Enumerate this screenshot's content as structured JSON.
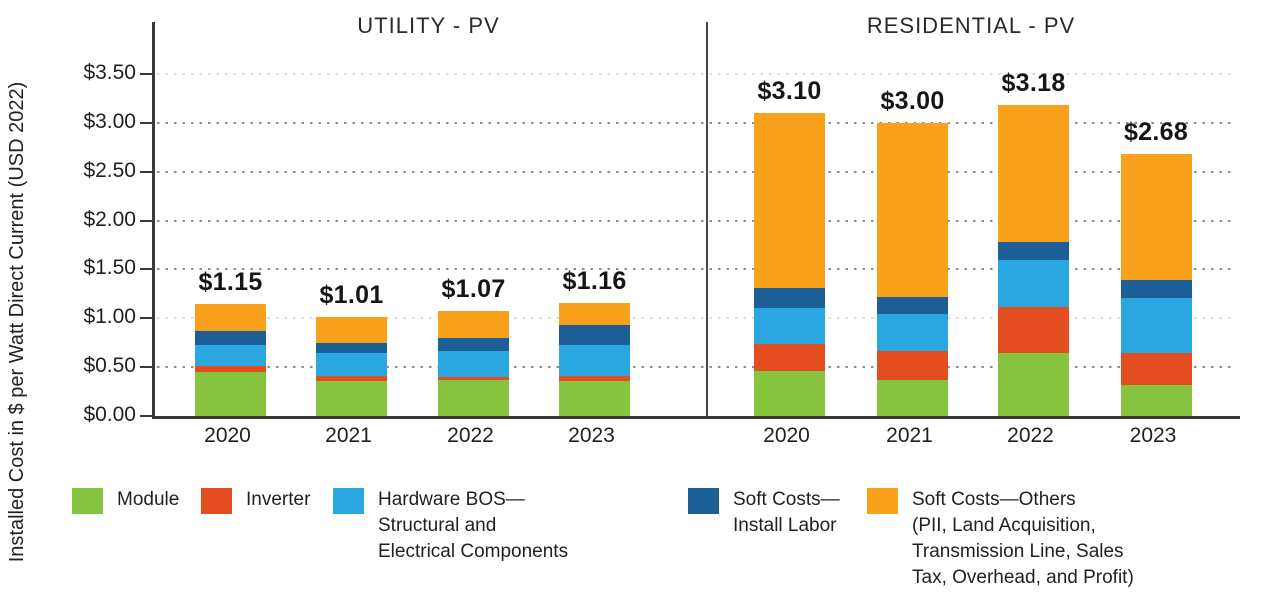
{
  "chart_data": {
    "type": "bar",
    "stacked": true,
    "ylabel": "Installed Cost in $ per Watt Direct Current (USD 2022)",
    "ylim": [
      0,
      4.0
    ],
    "grid": "dotted horizontal",
    "legend_position": "bottom",
    "y_ticks": [
      {
        "value": 0.0,
        "label": "$0.00"
      },
      {
        "value": 0.5,
        "label": "$0.50"
      },
      {
        "value": 1.0,
        "label": "$1.00"
      },
      {
        "value": 1.5,
        "label": "$1.50"
      },
      {
        "value": 2.0,
        "label": "$2.00"
      },
      {
        "value": 2.5,
        "label": "$2.50"
      },
      {
        "value": 3.0,
        "label": "$3.00"
      },
      {
        "value": 3.5,
        "label": "$3.50"
      }
    ],
    "gridlines": [
      0.5,
      1.5,
      2.0,
      2.5,
      3.0
    ],
    "gridlines_faint": [
      1.0,
      3.5
    ],
    "colors": {
      "module": "#86C440",
      "inverter": "#E34D20",
      "hardware_bos": "#2AA7E1",
      "install_labor": "#1C5F96",
      "soft_costs_others": "#F9A11B"
    },
    "panels": [
      {
        "title": "UTILITY - PV",
        "categories": [
          "2020",
          "2021",
          "2022",
          "2023"
        ],
        "totals": [
          "$1.15",
          "$1.01",
          "$1.07",
          "$1.16"
        ],
        "series": [
          {
            "key": "module",
            "name": "Module",
            "color": "#86C440",
            "values": [
              0.45,
              0.36,
              0.37,
              0.36
            ]
          },
          {
            "key": "inverter",
            "name": "Inverter",
            "color": "#E34D20",
            "values": [
              0.06,
              0.05,
              0.03,
              0.05
            ]
          },
          {
            "key": "hardware_bos",
            "name": "Hardware BOS—Structural and Electrical Components",
            "color": "#2AA7E1",
            "values": [
              0.22,
              0.23,
              0.27,
              0.32
            ]
          },
          {
            "key": "install_labor",
            "name": "Soft Costs—Install Labor",
            "color": "#1C5F96",
            "values": [
              0.14,
              0.11,
              0.13,
              0.2
            ]
          },
          {
            "key": "soft_costs_others",
            "name": "Soft Costs—Others",
            "color": "#F9A11B",
            "values": [
              0.28,
              0.26,
              0.27,
              0.23
            ]
          }
        ]
      },
      {
        "title": "RESIDENTIAL - PV",
        "categories": [
          "2020",
          "2021",
          "2022",
          "2023"
        ],
        "totals": [
          "$3.10",
          "$3.00",
          "$3.18",
          "$2.68"
        ],
        "series": [
          {
            "key": "module",
            "name": "Module",
            "color": "#86C440",
            "values": [
              0.46,
              0.37,
              0.65,
              0.32
            ]
          },
          {
            "key": "inverter",
            "name": "Inverter",
            "color": "#E34D20",
            "values": [
              0.28,
              0.3,
              0.47,
              0.33
            ]
          },
          {
            "key": "hardware_bos",
            "name": "Hardware BOS—Structural and Electrical Components",
            "color": "#2AA7E1",
            "values": [
              0.37,
              0.37,
              0.48,
              0.56
            ]
          },
          {
            "key": "install_labor",
            "name": "Soft Costs—Install Labor",
            "color": "#1C5F96",
            "values": [
              0.2,
              0.18,
              0.18,
              0.18
            ]
          },
          {
            "key": "soft_costs_others",
            "name": "Soft Costs—Others",
            "color": "#F9A11B",
            "values": [
              1.79,
              1.78,
              1.4,
              1.29
            ]
          }
        ]
      }
    ],
    "legend": [
      {
        "key": "module",
        "color": "#86C440",
        "label_lines": [
          "Module"
        ]
      },
      {
        "key": "inverter",
        "color": "#E34D20",
        "label_lines": [
          "Inverter"
        ]
      },
      {
        "key": "hardware_bos",
        "color": "#2AA7E1",
        "label_lines": [
          "Hardware BOS—",
          "Structural and",
          "Electrical Components"
        ]
      },
      {
        "key": "install_labor",
        "color": "#1C5F96",
        "label_lines": [
          "Soft Costs—",
          "Install Labor"
        ]
      },
      {
        "key": "soft_costs_others",
        "color": "#F9A11B",
        "label_lines": [
          "Soft Costs—Others",
          "(PII, Land Acquisition,",
          "Transmission Line, Sales",
          "Tax, Overhead, and Profit)"
        ]
      }
    ]
  }
}
